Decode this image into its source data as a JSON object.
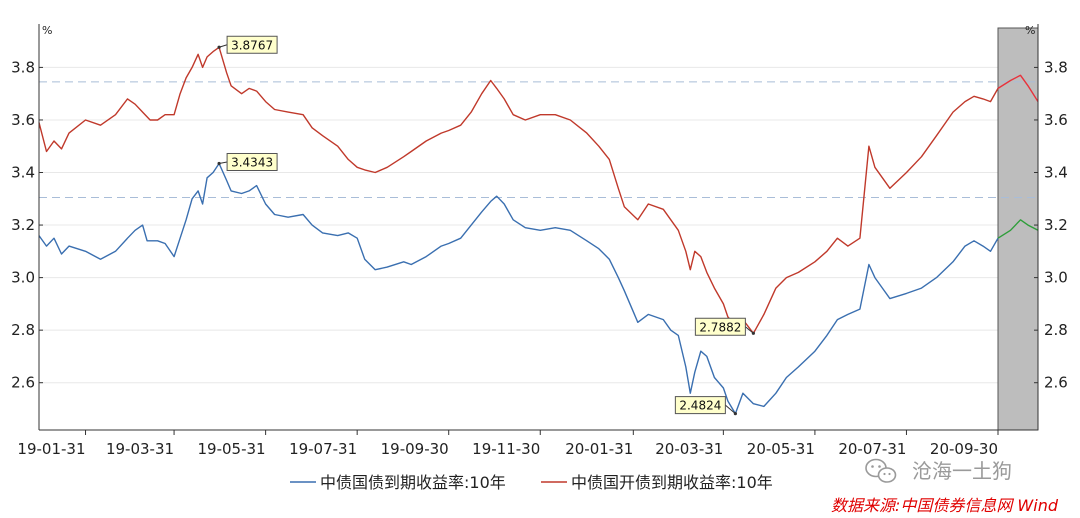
{
  "chart_data": {
    "type": "line",
    "y_unit_left": "%",
    "y_unit_right": "%",
    "ylim": [
      2.42,
      3.95
    ],
    "y_ticks": [
      2.6,
      2.8,
      3.0,
      3.2,
      3.4,
      3.6,
      3.8
    ],
    "y_tick_labels": [
      "2.6",
      "2.8",
      "3.0",
      "3.2",
      "3.4",
      "3.6",
      "3.8"
    ],
    "x_range": [
      "2018-12-31",
      "2020-10-16"
    ],
    "x_ticks": [
      "2019-01-31",
      "2019-03-31",
      "2019-05-31",
      "2019-07-31",
      "2019-09-30",
      "2019-11-30",
      "2020-01-31",
      "2020-03-31",
      "2020-05-31",
      "2020-07-31",
      "2020-09-30"
    ],
    "x_tick_labels": [
      "19-01-31",
      "19-03-31",
      "19-05-31",
      "19-07-31",
      "19-09-30",
      "19-11-30",
      "20-01-31",
      "20-03-31",
      "20-05-31",
      "20-07-31",
      "20-09-30"
    ],
    "reference_lines": [
      3.745,
      3.305
    ],
    "shaded_region": [
      "2020-09-30",
      "2020-10-16"
    ],
    "grid": true,
    "legend_position": "bottom",
    "series": [
      {
        "name": "中债国债到期收益率:10年",
        "color": "#3a6fb0",
        "shaded_color": "#2e9e3a",
        "points": [
          [
            "2018-12-31",
            3.16
          ],
          [
            "2019-01-05",
            3.12
          ],
          [
            "2019-01-10",
            3.15
          ],
          [
            "2019-01-15",
            3.09
          ],
          [
            "2019-01-20",
            3.12
          ],
          [
            "2019-01-31",
            3.1
          ],
          [
            "2019-02-10",
            3.07
          ],
          [
            "2019-02-20",
            3.1
          ],
          [
            "2019-02-28",
            3.15
          ],
          [
            "2019-03-05",
            3.18
          ],
          [
            "2019-03-10",
            3.2
          ],
          [
            "2019-03-13",
            3.14
          ],
          [
            "2019-03-20",
            3.14
          ],
          [
            "2019-03-25",
            3.13
          ],
          [
            "2019-03-31",
            3.08
          ],
          [
            "2019-04-04",
            3.15
          ],
          [
            "2019-04-08",
            3.22
          ],
          [
            "2019-04-12",
            3.3
          ],
          [
            "2019-04-16",
            3.33
          ],
          [
            "2019-04-19",
            3.28
          ],
          [
            "2019-04-22",
            3.38
          ],
          [
            "2019-04-26",
            3.4
          ],
          [
            "2019-04-30",
            3.4343
          ],
          [
            "2019-05-05",
            3.37
          ],
          [
            "2019-05-08",
            3.33
          ],
          [
            "2019-05-15",
            3.32
          ],
          [
            "2019-05-20",
            3.33
          ],
          [
            "2019-05-25",
            3.35
          ],
          [
            "2019-05-31",
            3.28
          ],
          [
            "2019-06-06",
            3.24
          ],
          [
            "2019-06-15",
            3.23
          ],
          [
            "2019-06-25",
            3.24
          ],
          [
            "2019-07-01",
            3.2
          ],
          [
            "2019-07-08",
            3.17
          ],
          [
            "2019-07-18",
            3.16
          ],
          [
            "2019-07-25",
            3.17
          ],
          [
            "2019-07-31",
            3.15
          ],
          [
            "2019-08-05",
            3.07
          ],
          [
            "2019-08-12",
            3.03
          ],
          [
            "2019-08-20",
            3.04
          ],
          [
            "2019-08-31",
            3.06
          ],
          [
            "2019-09-05",
            3.05
          ],
          [
            "2019-09-15",
            3.08
          ],
          [
            "2019-09-25",
            3.12
          ],
          [
            "2019-09-30",
            3.13
          ],
          [
            "2019-10-08",
            3.15
          ],
          [
            "2019-10-15",
            3.2
          ],
          [
            "2019-10-22",
            3.25
          ],
          [
            "2019-10-28",
            3.29
          ],
          [
            "2019-11-01",
            3.31
          ],
          [
            "2019-11-06",
            3.28
          ],
          [
            "2019-11-12",
            3.22
          ],
          [
            "2019-11-20",
            3.19
          ],
          [
            "2019-11-30",
            3.18
          ],
          [
            "2019-12-10",
            3.19
          ],
          [
            "2019-12-20",
            3.18
          ],
          [
            "2019-12-31",
            3.14
          ],
          [
            "2020-01-08",
            3.11
          ],
          [
            "2020-01-15",
            3.07
          ],
          [
            "2020-01-21",
            3.0
          ],
          [
            "2020-01-25",
            2.95
          ],
          [
            "2020-02-03",
            2.83
          ],
          [
            "2020-02-10",
            2.86
          ],
          [
            "2020-02-20",
            2.84
          ],
          [
            "2020-02-25",
            2.8
          ],
          [
            "2020-03-01",
            2.78
          ],
          [
            "2020-03-06",
            2.66
          ],
          [
            "2020-03-09",
            2.56
          ],
          [
            "2020-03-12",
            2.64
          ],
          [
            "2020-03-16",
            2.72
          ],
          [
            "2020-03-20",
            2.7
          ],
          [
            "2020-03-25",
            2.62
          ],
          [
            "2020-03-31",
            2.58
          ],
          [
            "2020-04-03",
            2.53
          ],
          [
            "2020-04-08",
            2.4824
          ],
          [
            "2020-04-13",
            2.56
          ],
          [
            "2020-04-20",
            2.52
          ],
          [
            "2020-04-27",
            2.51
          ],
          [
            "2020-05-05",
            2.56
          ],
          [
            "2020-05-12",
            2.62
          ],
          [
            "2020-05-20",
            2.66
          ],
          [
            "2020-05-31",
            2.72
          ],
          [
            "2020-06-08",
            2.78
          ],
          [
            "2020-06-15",
            2.84
          ],
          [
            "2020-06-22",
            2.86
          ],
          [
            "2020-06-30",
            2.88
          ],
          [
            "2020-07-06",
            3.05
          ],
          [
            "2020-07-10",
            3.0
          ],
          [
            "2020-07-15",
            2.96
          ],
          [
            "2020-07-20",
            2.92
          ],
          [
            "2020-07-31",
            2.94
          ],
          [
            "2020-08-10",
            2.96
          ],
          [
            "2020-08-20",
            3.0
          ],
          [
            "2020-08-31",
            3.06
          ],
          [
            "2020-09-08",
            3.12
          ],
          [
            "2020-09-14",
            3.14
          ],
          [
            "2020-09-20",
            3.12
          ],
          [
            "2020-09-25",
            3.1
          ],
          [
            "2020-09-30",
            3.15
          ],
          [
            "2020-10-05",
            3.18
          ],
          [
            "2020-10-09",
            3.22
          ],
          [
            "2020-10-12",
            3.2
          ],
          [
            "2020-10-16",
            3.18
          ]
        ]
      },
      {
        "name": "中债国开债到期收益率:10年",
        "color": "#c0392b",
        "shaded_color": "#e8323c",
        "points": [
          [
            "2018-12-31",
            3.59
          ],
          [
            "2019-01-05",
            3.48
          ],
          [
            "2019-01-10",
            3.52
          ],
          [
            "2019-01-15",
            3.49
          ],
          [
            "2019-01-20",
            3.55
          ],
          [
            "2019-01-31",
            3.6
          ],
          [
            "2019-02-10",
            3.58
          ],
          [
            "2019-02-20",
            3.62
          ],
          [
            "2019-02-28",
            3.68
          ],
          [
            "2019-03-05",
            3.66
          ],
          [
            "2019-03-10",
            3.63
          ],
          [
            "2019-03-15",
            3.6
          ],
          [
            "2019-03-20",
            3.6
          ],
          [
            "2019-03-25",
            3.62
          ],
          [
            "2019-03-31",
            3.62
          ],
          [
            "2019-04-04",
            3.7
          ],
          [
            "2019-04-08",
            3.76
          ],
          [
            "2019-04-12",
            3.8
          ],
          [
            "2019-04-16",
            3.85
          ],
          [
            "2019-04-19",
            3.8
          ],
          [
            "2019-04-22",
            3.84
          ],
          [
            "2019-04-26",
            3.86
          ],
          [
            "2019-04-30",
            3.8767
          ],
          [
            "2019-05-05",
            3.78
          ],
          [
            "2019-05-08",
            3.73
          ],
          [
            "2019-05-15",
            3.7
          ],
          [
            "2019-05-20",
            3.72
          ],
          [
            "2019-05-25",
            3.71
          ],
          [
            "2019-05-31",
            3.67
          ],
          [
            "2019-06-06",
            3.64
          ],
          [
            "2019-06-15",
            3.63
          ],
          [
            "2019-06-25",
            3.62
          ],
          [
            "2019-07-01",
            3.57
          ],
          [
            "2019-07-08",
            3.54
          ],
          [
            "2019-07-18",
            3.5
          ],
          [
            "2019-07-25",
            3.45
          ],
          [
            "2019-07-31",
            3.42
          ],
          [
            "2019-08-05",
            3.41
          ],
          [
            "2019-08-12",
            3.4
          ],
          [
            "2019-08-20",
            3.42
          ],
          [
            "2019-08-31",
            3.46
          ],
          [
            "2019-09-05",
            3.48
          ],
          [
            "2019-09-15",
            3.52
          ],
          [
            "2019-09-25",
            3.55
          ],
          [
            "2019-09-30",
            3.56
          ],
          [
            "2019-10-08",
            3.58
          ],
          [
            "2019-10-15",
            3.63
          ],
          [
            "2019-10-22",
            3.7
          ],
          [
            "2019-10-28",
            3.75
          ],
          [
            "2019-11-01",
            3.72
          ],
          [
            "2019-11-06",
            3.68
          ],
          [
            "2019-11-12",
            3.62
          ],
          [
            "2019-11-20",
            3.6
          ],
          [
            "2019-11-30",
            3.62
          ],
          [
            "2019-12-10",
            3.62
          ],
          [
            "2019-12-20",
            3.6
          ],
          [
            "2019-12-31",
            3.55
          ],
          [
            "2020-01-08",
            3.5
          ],
          [
            "2020-01-15",
            3.45
          ],
          [
            "2020-01-21",
            3.34
          ],
          [
            "2020-01-25",
            3.27
          ],
          [
            "2020-02-03",
            3.22
          ],
          [
            "2020-02-10",
            3.28
          ],
          [
            "2020-02-20",
            3.26
          ],
          [
            "2020-02-25",
            3.22
          ],
          [
            "2020-03-01",
            3.18
          ],
          [
            "2020-03-06",
            3.1
          ],
          [
            "2020-03-09",
            3.03
          ],
          [
            "2020-03-12",
            3.1
          ],
          [
            "2020-03-16",
            3.08
          ],
          [
            "2020-03-20",
            3.02
          ],
          [
            "2020-03-25",
            2.96
          ],
          [
            "2020-03-31",
            2.9
          ],
          [
            "2020-04-03",
            2.85
          ],
          [
            "2020-04-08",
            2.82
          ],
          [
            "2020-04-13",
            2.84
          ],
          [
            "2020-04-20",
            2.7882
          ],
          [
            "2020-04-27",
            2.86
          ],
          [
            "2020-05-05",
            2.96
          ],
          [
            "2020-05-12",
            3.0
          ],
          [
            "2020-05-20",
            3.02
          ],
          [
            "2020-05-31",
            3.06
          ],
          [
            "2020-06-08",
            3.1
          ],
          [
            "2020-06-15",
            3.15
          ],
          [
            "2020-06-22",
            3.12
          ],
          [
            "2020-06-30",
            3.15
          ],
          [
            "2020-07-06",
            3.5
          ],
          [
            "2020-07-10",
            3.42
          ],
          [
            "2020-07-15",
            3.38
          ],
          [
            "2020-07-20",
            3.34
          ],
          [
            "2020-07-31",
            3.4
          ],
          [
            "2020-08-10",
            3.46
          ],
          [
            "2020-08-20",
            3.54
          ],
          [
            "2020-08-31",
            3.63
          ],
          [
            "2020-09-08",
            3.67
          ],
          [
            "2020-09-14",
            3.69
          ],
          [
            "2020-09-20",
            3.68
          ],
          [
            "2020-09-25",
            3.67
          ],
          [
            "2020-09-30",
            3.72
          ],
          [
            "2020-10-05",
            3.75
          ],
          [
            "2020-10-09",
            3.77
          ],
          [
            "2020-10-12",
            3.73
          ],
          [
            "2020-10-16",
            3.67
          ]
        ]
      }
    ],
    "callouts": [
      {
        "series": 1,
        "date": "2019-04-30",
        "value": 3.8767,
        "label": "3.8767",
        "dx": 8,
        "dy": -11
      },
      {
        "series": 0,
        "date": "2019-04-30",
        "value": 3.4343,
        "label": "3.4343",
        "dx": 8,
        "dy": -10
      },
      {
        "series": 1,
        "date": "2020-04-20",
        "value": 2.7882,
        "label": "2.7882",
        "dx": -58,
        "dy": -15
      },
      {
        "series": 0,
        "date": "2020-04-08",
        "value": 2.4824,
        "label": "2.4824",
        "dx": -60,
        "dy": -17
      }
    ]
  },
  "watermark": "沧海一土狗",
  "source_note": "数据来源:中国债券信息网 Wind"
}
